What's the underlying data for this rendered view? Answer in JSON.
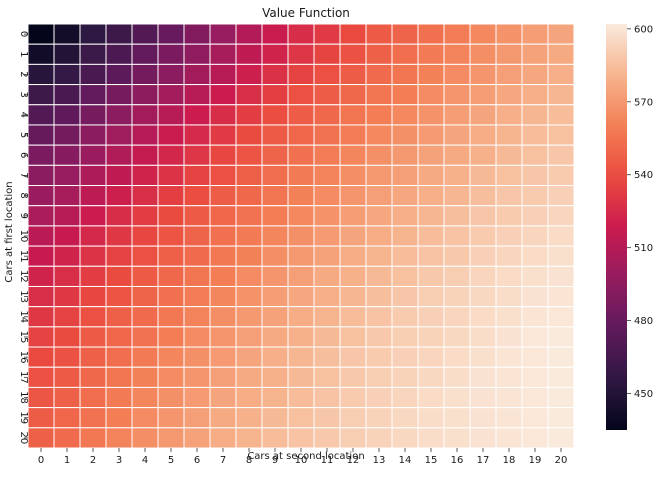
{
  "chart_data": {
    "type": "heatmap",
    "title": "Value Function",
    "xlabel": "Cars at second location",
    "ylabel": "Cars at first location",
    "x_categories": [
      "0",
      "1",
      "2",
      "3",
      "4",
      "5",
      "6",
      "7",
      "8",
      "9",
      "10",
      "11",
      "12",
      "13",
      "14",
      "15",
      "16",
      "17",
      "18",
      "19",
      "20"
    ],
    "y_categories": [
      "0",
      "1",
      "2",
      "3",
      "4",
      "5",
      "6",
      "7",
      "8",
      "9",
      "10",
      "11",
      "12",
      "13",
      "14",
      "15",
      "16",
      "17",
      "18",
      "19",
      "20"
    ],
    "value_range": [
      435,
      602
    ],
    "colorbar_ticks": [
      450,
      480,
      510,
      540,
      570,
      600
    ],
    "colormap": "rocket",
    "cell_border_color": "#ffffff",
    "grid": false,
    "legend": "colorbar-right",
    "values": [
      [
        435,
        443,
        455,
        462,
        471,
        480,
        490,
        499,
        509,
        518,
        526,
        532,
        538,
        545,
        549,
        554,
        559,
        564,
        568,
        572,
        575
      ],
      [
        442,
        450,
        461,
        469,
        478,
        487,
        496,
        505,
        514,
        522,
        530,
        536,
        542,
        548,
        553,
        558,
        562,
        566,
        570,
        574,
        577
      ],
      [
        452,
        458,
        468,
        476,
        485,
        494,
        503,
        511,
        520,
        528,
        535,
        541,
        546,
        552,
        556,
        561,
        565,
        569,
        573,
        576,
        579
      ],
      [
        462,
        468,
        478,
        486,
        495,
        503,
        511,
        519,
        527,
        534,
        541,
        546,
        551,
        556,
        560,
        565,
        569,
        572,
        576,
        579,
        582
      ],
      [
        471,
        477,
        486,
        494,
        503,
        511,
        519,
        526,
        533,
        540,
        546,
        551,
        556,
        560,
        564,
        568,
        572,
        575,
        579,
        582,
        584
      ],
      [
        479,
        485,
        494,
        502,
        510,
        518,
        525,
        532,
        539,
        545,
        550,
        555,
        559,
        564,
        567,
        571,
        575,
        578,
        581,
        584,
        586
      ],
      [
        487,
        492,
        500,
        508,
        516,
        523,
        530,
        537,
        543,
        549,
        554,
        559,
        563,
        567,
        570,
        574,
        577,
        580,
        583,
        586,
        588
      ],
      [
        494,
        499,
        507,
        514,
        522,
        529,
        535,
        541,
        547,
        553,
        558,
        562,
        566,
        570,
        573,
        577,
        580,
        583,
        586,
        588,
        590
      ],
      [
        500,
        505,
        513,
        520,
        527,
        534,
        540,
        546,
        551,
        556,
        561,
        565,
        569,
        573,
        576,
        579,
        582,
        585,
        588,
        590,
        592
      ],
      [
        506,
        511,
        519,
        526,
        533,
        539,
        545,
        550,
        555,
        560,
        564,
        568,
        572,
        576,
        579,
        582,
        585,
        588,
        590,
        592,
        594
      ],
      [
        512,
        517,
        524,
        531,
        537,
        543,
        549,
        554,
        558,
        563,
        567,
        571,
        575,
        578,
        581,
        584,
        587,
        590,
        592,
        594,
        596
      ],
      [
        517,
        522,
        529,
        535,
        541,
        547,
        552,
        557,
        561,
        566,
        570,
        574,
        578,
        581,
        584,
        587,
        589,
        592,
        594,
        596,
        598
      ],
      [
        522,
        527,
        533,
        539,
        545,
        551,
        556,
        560,
        565,
        569,
        573,
        577,
        580,
        583,
        586,
        589,
        591,
        594,
        596,
        598,
        599
      ],
      [
        527,
        531,
        537,
        543,
        549,
        554,
        559,
        563,
        568,
        572,
        576,
        579,
        582,
        585,
        588,
        591,
        593,
        595,
        597,
        599,
        600
      ],
      [
        531,
        535,
        541,
        547,
        552,
        557,
        562,
        566,
        570,
        574,
        578,
        581,
        584,
        587,
        590,
        592,
        594,
        596,
        598,
        600,
        601
      ],
      [
        535,
        539,
        545,
        550,
        555,
        560,
        565,
        569,
        573,
        577,
        580,
        583,
        586,
        589,
        591,
        593,
        595,
        597,
        599,
        601,
        602
      ],
      [
        538,
        542,
        548,
        553,
        558,
        563,
        567,
        571,
        575,
        579,
        582,
        585,
        588,
        590,
        592,
        594,
        596,
        598,
        600,
        601,
        602
      ],
      [
        541,
        545,
        551,
        556,
        561,
        565,
        569,
        573,
        577,
        580,
        583,
        586,
        589,
        591,
        593,
        595,
        597,
        599,
        600,
        601,
        602
      ],
      [
        544,
        548,
        553,
        558,
        563,
        567,
        571,
        575,
        578,
        581,
        584,
        587,
        590,
        592,
        594,
        596,
        598,
        599,
        600,
        601,
        602
      ],
      [
        546,
        550,
        555,
        560,
        565,
        569,
        573,
        577,
        580,
        583,
        586,
        588,
        591,
        593,
        595,
        597,
        598,
        599,
        600,
        601,
        602
      ],
      [
        548,
        552,
        557,
        562,
        566,
        570,
        574,
        578,
        581,
        584,
        587,
        589,
        591,
        593,
        595,
        597,
        598,
        599,
        600,
        601,
        602
      ]
    ]
  }
}
